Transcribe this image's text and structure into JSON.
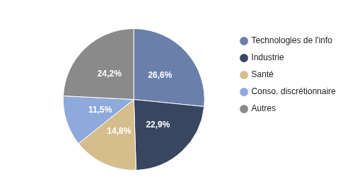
{
  "chart_data": {
    "type": "pie",
    "categories": [
      "Technologies de l'info",
      "Industrie",
      "Santé",
      "Conso. discrétionnaire",
      "Autres"
    ],
    "values": [
      26.6,
      22.9,
      14.8,
      11.5,
      24.2
    ],
    "value_labels": [
      "26,6%",
      "22,9%",
      "14,8%",
      "11,5%",
      "24,2%"
    ],
    "colors": [
      "#6a7fa9",
      "#394660",
      "#d5be8c",
      "#8eaadb",
      "#8a8a8a"
    ],
    "data_labels": true,
    "legend": "right"
  }
}
